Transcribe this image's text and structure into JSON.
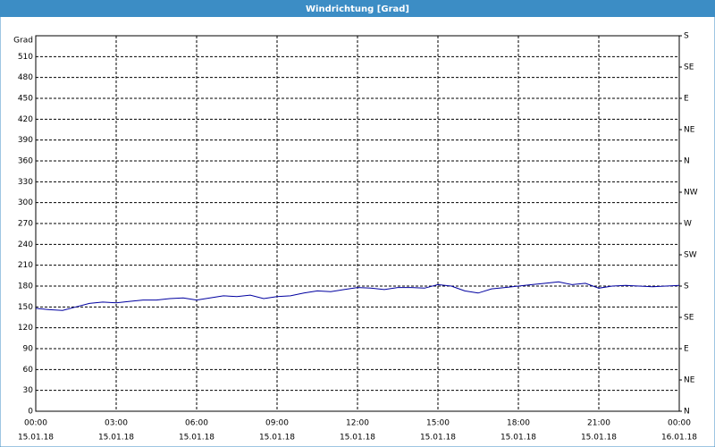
{
  "chart_data": {
    "type": "line",
    "title": "Windrichtung [Grad]",
    "y_label": "Grad",
    "x": [
      0,
      0.5,
      1,
      1.5,
      2,
      2.5,
      3,
      3.5,
      4,
      4.5,
      5,
      5.5,
      6,
      6.5,
      7,
      7.5,
      8,
      8.5,
      9,
      9.5,
      10,
      10.5,
      11,
      11.5,
      12,
      12.5,
      13,
      13.5,
      14,
      14.5,
      15,
      15.5,
      16,
      16.5,
      17,
      17.5,
      18,
      18.5,
      19,
      19.5,
      20,
      20.5,
      21,
      21.5,
      22,
      22.5,
      23,
      23.5,
      24
    ],
    "values": [
      148,
      146,
      145,
      150,
      155,
      157,
      156,
      158,
      160,
      160,
      162,
      163,
      160,
      163,
      166,
      165,
      167,
      162,
      165,
      166,
      170,
      173,
      172,
      175,
      178,
      177,
      175,
      178,
      178,
      177,
      182,
      180,
      173,
      170,
      176,
      178,
      180,
      182,
      184,
      186,
      182,
      184,
      177,
      180,
      181,
      180,
      179,
      180,
      181
    ],
    "color": "#0000a0",
    "xlim": [
      0,
      24
    ],
    "xticks": [
      {
        "value": 0,
        "label": "00:00"
      },
      {
        "value": 3,
        "label": "03:00"
      },
      {
        "value": 6,
        "label": "06:00"
      },
      {
        "value": 9,
        "label": "09:00"
      },
      {
        "value": 12,
        "label": "12:00"
      },
      {
        "value": 15,
        "label": "15:00"
      },
      {
        "value": 18,
        "label": "18:00"
      },
      {
        "value": 21,
        "label": "21:00"
      },
      {
        "value": 24,
        "label": "00:00"
      }
    ],
    "xtick_dates": [
      "15.01.18",
      "15.01.18",
      "15.01.18",
      "15.01.18",
      "15.01.18",
      "15.01.18",
      "15.01.18",
      "15.01.18",
      "16.01.18"
    ],
    "ylim": [
      0,
      540
    ],
    "yticks": [
      0,
      30,
      60,
      90,
      120,
      150,
      180,
      210,
      240,
      270,
      300,
      330,
      360,
      390,
      420,
      450,
      480,
      510
    ],
    "y2lim": [
      0,
      540
    ],
    "y2ticks": [
      {
        "value": 0,
        "label": "N"
      },
      {
        "value": 45,
        "label": "NE"
      },
      {
        "value": 90,
        "label": "E"
      },
      {
        "value": 135,
        "label": "SE"
      },
      {
        "value": 180,
        "label": "S"
      },
      {
        "value": 225,
        "label": "SW"
      },
      {
        "value": 270,
        "label": "W"
      },
      {
        "value": 315,
        "label": "NW"
      },
      {
        "value": 360,
        "label": "N"
      },
      {
        "value": 405,
        "label": "NE"
      },
      {
        "value": 450,
        "label": "E"
      },
      {
        "value": 495,
        "label": "SE"
      },
      {
        "value": 540,
        "label": "S"
      }
    ],
    "grid": true
  }
}
